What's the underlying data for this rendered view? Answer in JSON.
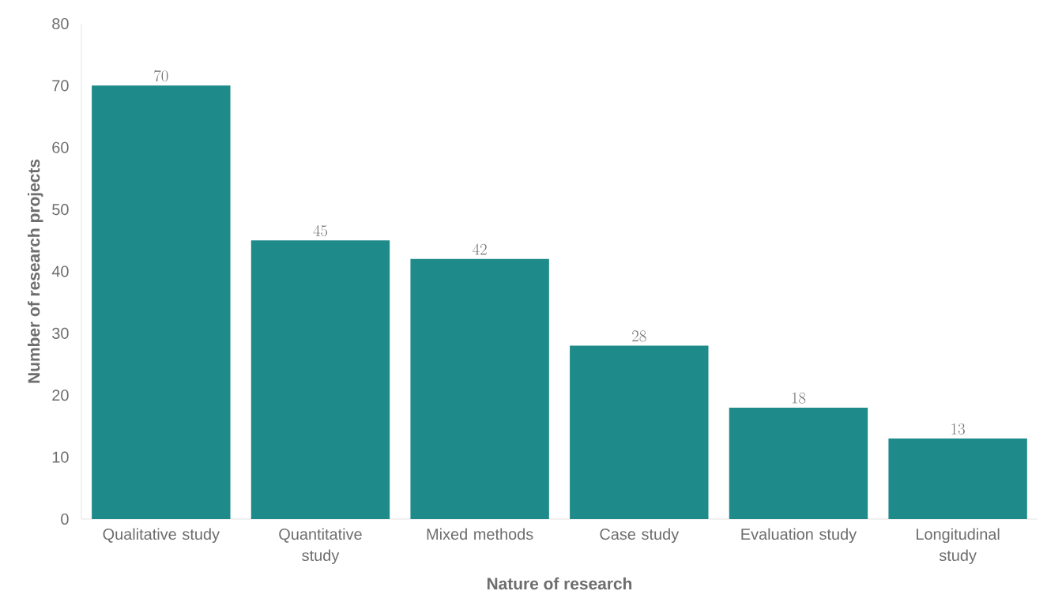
{
  "chart_data": {
    "type": "bar",
    "xlabel": "Nature of research",
    "ylabel": "Number of research projects",
    "categories": [
      "Qualitative study",
      "Quantitative study",
      "Mixed methods",
      "Case study",
      "Evaluation study",
      "Longitudinal study"
    ],
    "values": [
      70,
      45,
      42,
      28,
      18,
      13
    ],
    "color": "#1e8a8a",
    "ylim": [
      0,
      80
    ],
    "yticks": [
      0,
      10,
      20,
      30,
      40,
      50,
      60,
      70,
      80
    ],
    "grid": false,
    "data_labels": true
  }
}
